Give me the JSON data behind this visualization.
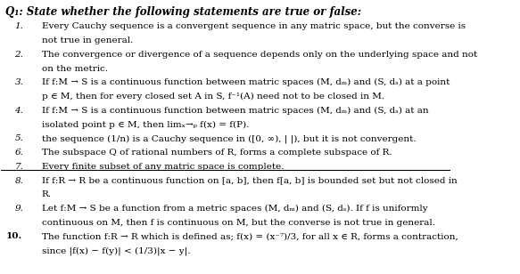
{
  "title": "Q₁: State whether the following statements are true or false:",
  "lines": [
    [
      "1.",
      "Every Cauchy sequence is a convergent sequence in any matric space, but the converse is"
    ],
    [
      "",
      "not true in general."
    ],
    [
      "2.",
      "The convergence or divergence of a sequence depends only on the underlying space and not"
    ],
    [
      "",
      "on the metric."
    ],
    [
      "3.",
      "If f:M → S is a continuous function between matric spaces (M, dₘ) and (S, dₛ) at a point"
    ],
    [
      "",
      "p ∈ M, then for every closed set A in S, f⁻¹(A) need not to be closed in M."
    ],
    [
      "4.",
      "If f:M → S is a continuous function between matric spaces (M, dₘ) and (S, dₛ) at an"
    ],
    [
      "",
      "isolated point p ∈ M, then limₓ→ₚ f(x) = f(P)."
    ],
    [
      "5.",
      "the sequence (1/n) is a Cauchy sequence in ([0, ∞), | |), but it is not convergent."
    ],
    [
      "6.",
      "The subspace Q of rational numbers of R, forms a complete subspace of R."
    ],
    [
      "7.",
      "Every finite subset of any matric space is complete."
    ],
    [
      "8.",
      "If f:R → R be a continuous function on [a, b], then f[a, b] is bounded set but not closed in"
    ],
    [
      "",
      "R."
    ],
    [
      "9.",
      "Let f:M → S be a function from a metric spaces (M, dₘ) and (S, dₛ). If f is uniformly"
    ],
    [
      "",
      "continuous on M, then f is continuous on M, but the converse is not true in general."
    ],
    [
      "10.",
      "The function f:R → R which is defined as; f(x) = (x⁻⁷)/3, for all x ∈ R, forms a contraction,"
    ],
    [
      "",
      "since |f(x) − f(y)| < (1/3)|x − y|."
    ]
  ],
  "bg_color": "#ffffff",
  "text_color": "#000000",
  "title_fontsize": 8.5,
  "body_fontsize": 7.5,
  "fig_width": 5.83,
  "fig_height": 3.08,
  "dpi": 100
}
